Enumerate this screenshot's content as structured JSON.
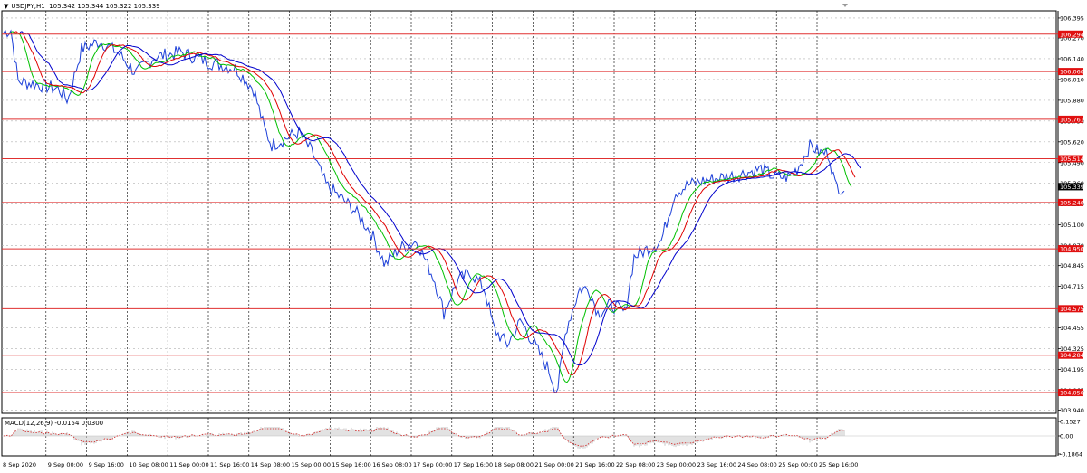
{
  "header": {
    "dropdown_icon": "triangle-down-icon",
    "symbol": "USDJPY,H1",
    "ohlc": "105.342 105.344 105.322 105.339"
  },
  "price_axis": {
    "labels": [
      "106.395",
      "106.270",
      "106.140",
      "106.010",
      "105.880",
      "105.750",
      "105.620",
      "105.490",
      "105.360",
      "105.230",
      "105.100",
      "104.970",
      "104.845",
      "104.715",
      "104.585",
      "104.455",
      "104.325",
      "104.195",
      "104.065",
      "103.940"
    ],
    "current_price": "105.339",
    "range": [
      103.92,
      106.44
    ]
  },
  "levels": [
    {
      "label": "106.294",
      "value": 106.294
    },
    {
      "label": "106.060",
      "value": 106.06
    },
    {
      "label": "105.761",
      "value": 105.761
    },
    {
      "label": "105.514",
      "value": 105.514
    },
    {
      "label": "105.240",
      "value": 105.24
    },
    {
      "label": "104.950",
      "value": 104.95
    },
    {
      "label": "104.575",
      "value": 104.575
    },
    {
      "label": "104.284",
      "value": 104.284
    },
    {
      "label": "104.050",
      "value": 104.05
    }
  ],
  "time_axis": [
    "8 Sep 2020",
    "9 Sep 00:00",
    "9 Sep 16:00",
    "10 Sep 08:00",
    "11 Sep 00:00",
    "11 Sep 16:00",
    "14 Sep 08:00",
    "15 Sep 00:00",
    "15 Sep 16:00",
    "16 Sep 08:00",
    "17 Sep 00:00",
    "17 Sep 16:00",
    "18 Sep 08:00",
    "21 Sep 00:00",
    "21 Sep 16:00",
    "22 Sep 08:00",
    "23 Sep 00:00",
    "23 Sep 16:00",
    "24 Sep 08:00",
    "25 Sep 00:00",
    "25 Sep 16:00"
  ],
  "macd": {
    "title": "MACD(12,26,9) -0.0154 0.0300",
    "axis_labels": [
      "0.1527",
      "0.00",
      "-0.1864"
    ]
  },
  "colors": {
    "price_line": "#1c3fd8",
    "ma_fast": "#00c000",
    "ma_mid": "#e00000",
    "ma_slow": "#0000cc",
    "level_line": "#e03030",
    "level_label_bg": "#e01010",
    "grid": "#b0b0b0"
  }
}
